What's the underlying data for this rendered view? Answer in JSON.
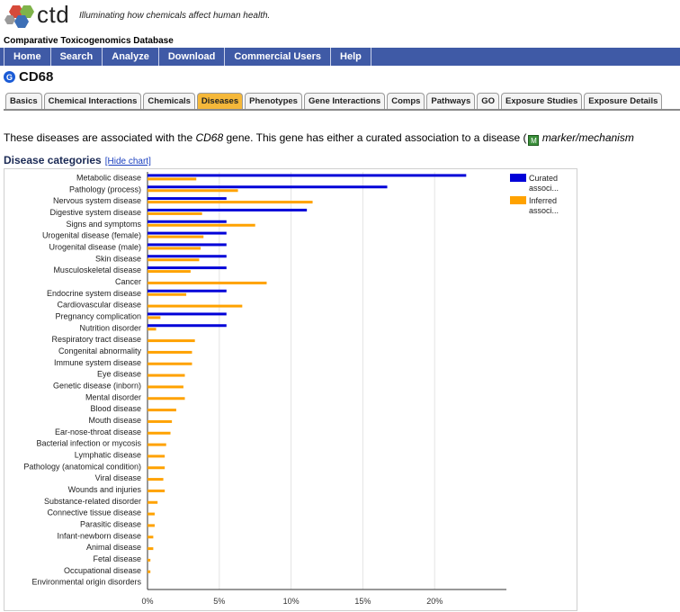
{
  "header": {
    "logo_text": "ctd",
    "tagline": "Illuminating how chemicals affect human health.",
    "db_name": "Comparative Toxicogenomics Database"
  },
  "nav": [
    "Home",
    "Search",
    "Analyze",
    "Download",
    "Commercial Users",
    "Help"
  ],
  "gene": {
    "icon": "gene-icon",
    "name": "CD68"
  },
  "tabs": [
    "Basics",
    "Chemical Interactions",
    "Chemicals",
    "Diseases",
    "Phenotypes",
    "Gene Interactions",
    "Comps",
    "Pathways",
    "GO",
    "Exposure Studies",
    "Exposure Details"
  ],
  "active_tab": "Diseases",
  "intro": {
    "before": "These diseases are associated with the ",
    "gene": "CD68",
    "after": " gene. This gene has either a curated association to a disease (",
    "marker_icon": "marker-icon",
    "end": "marker/mechanism"
  },
  "categories_heading": "Disease categories",
  "hide_chart_label": "[Hide chart]",
  "colors": {
    "curated": "#0000d8",
    "inferred": "#ffa200",
    "nav": "#3f5aa6",
    "active_tab": "#f5b83a"
  },
  "chart_data": {
    "type": "bar",
    "orientation": "horizontal",
    "categories": [
      "Metabolic disease",
      "Pathology (process)",
      "Nervous system disease",
      "Digestive system disease",
      "Signs and symptoms",
      "Urogenital disease (female)",
      "Urogenital disease (male)",
      "Skin disease",
      "Musculoskeletal disease",
      "Cancer",
      "Endocrine system disease",
      "Cardiovascular disease",
      "Pregnancy complication",
      "Nutrition disorder",
      "Respiratory tract disease",
      "Congenital abnormality",
      "Immune system disease",
      "Eye disease",
      "Genetic disease (inborn)",
      "Mental disorder",
      "Blood disease",
      "Mouth disease",
      "Ear-nose-throat disease",
      "Bacterial infection or mycosis",
      "Lymphatic disease",
      "Pathology (anatomical condition)",
      "Viral disease",
      "Wounds and injuries",
      "Substance-related disorder",
      "Connective tissue disease",
      "Parasitic disease",
      "Infant-newborn disease",
      "Animal disease",
      "Fetal disease",
      "Occupational disease",
      "Environmental origin disorders"
    ],
    "series": [
      {
        "name": "Curated associations",
        "legend_label": "Curated associ...",
        "color": "#0000d8",
        "values": [
          22.2,
          16.7,
          5.5,
          11.1,
          5.5,
          5.5,
          5.5,
          5.5,
          5.5,
          0,
          5.5,
          0,
          5.5,
          5.5,
          0,
          0,
          0,
          0,
          0,
          0,
          0,
          0,
          0,
          0,
          0,
          0,
          0,
          0,
          0,
          0,
          0,
          0,
          0,
          0,
          0,
          0
        ]
      },
      {
        "name": "Inferred associations",
        "legend_label": "Inferred associ...",
        "color": "#ffa200",
        "values": [
          3.4,
          6.3,
          11.5,
          3.8,
          7.5,
          3.9,
          3.7,
          3.6,
          3.0,
          8.3,
          2.7,
          6.6,
          0.9,
          0.6,
          3.3,
          3.1,
          3.1,
          2.6,
          2.5,
          2.6,
          2.0,
          1.7,
          1.6,
          1.3,
          1.2,
          1.2,
          1.1,
          1.2,
          0.7,
          0.5,
          0.5,
          0.4,
          0.4,
          0.2,
          0.2,
          0
        ]
      }
    ],
    "xlim": [
      0,
      25
    ],
    "xticks": [
      0,
      5,
      10,
      15,
      20
    ],
    "xtick_labels": [
      "0%",
      "5%",
      "10%",
      "15%",
      "20%"
    ],
    "grid": "vertical",
    "legend_position": "top-right"
  }
}
